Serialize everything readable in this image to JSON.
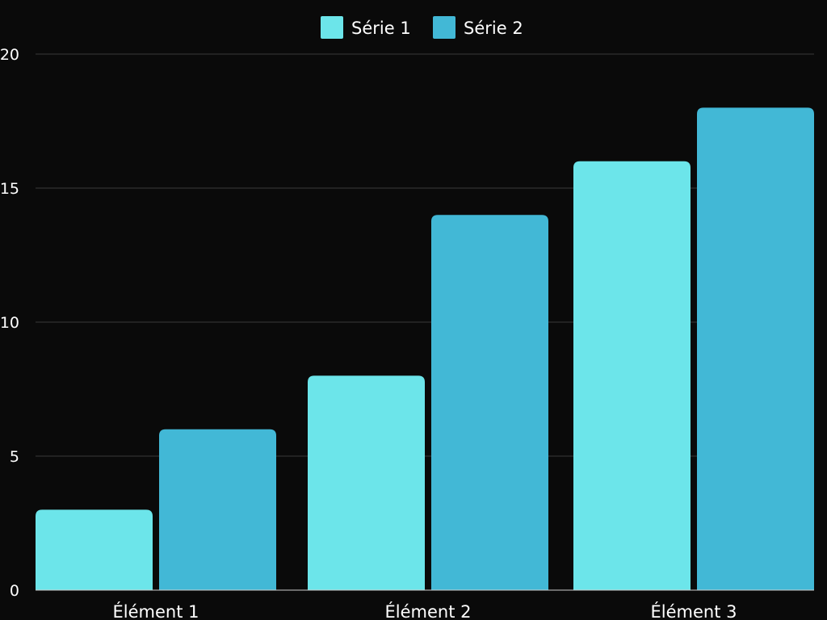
{
  "chart_data": {
    "type": "bar",
    "categories": [
      "Élément 1",
      "Élément 2",
      "Élément 3"
    ],
    "series": [
      {
        "name": "Série 1",
        "values": [
          3,
          8,
          16
        ],
        "color": "#6ce5ea"
      },
      {
        "name": "Série 2",
        "values": [
          6,
          14,
          18
        ],
        "color": "#42b8d6"
      }
    ],
    "ylim": [
      0,
      20
    ],
    "yticks": [
      0,
      5,
      10,
      15,
      20
    ],
    "grid": true,
    "legend": "top-center",
    "background": "#0a0a0a"
  }
}
